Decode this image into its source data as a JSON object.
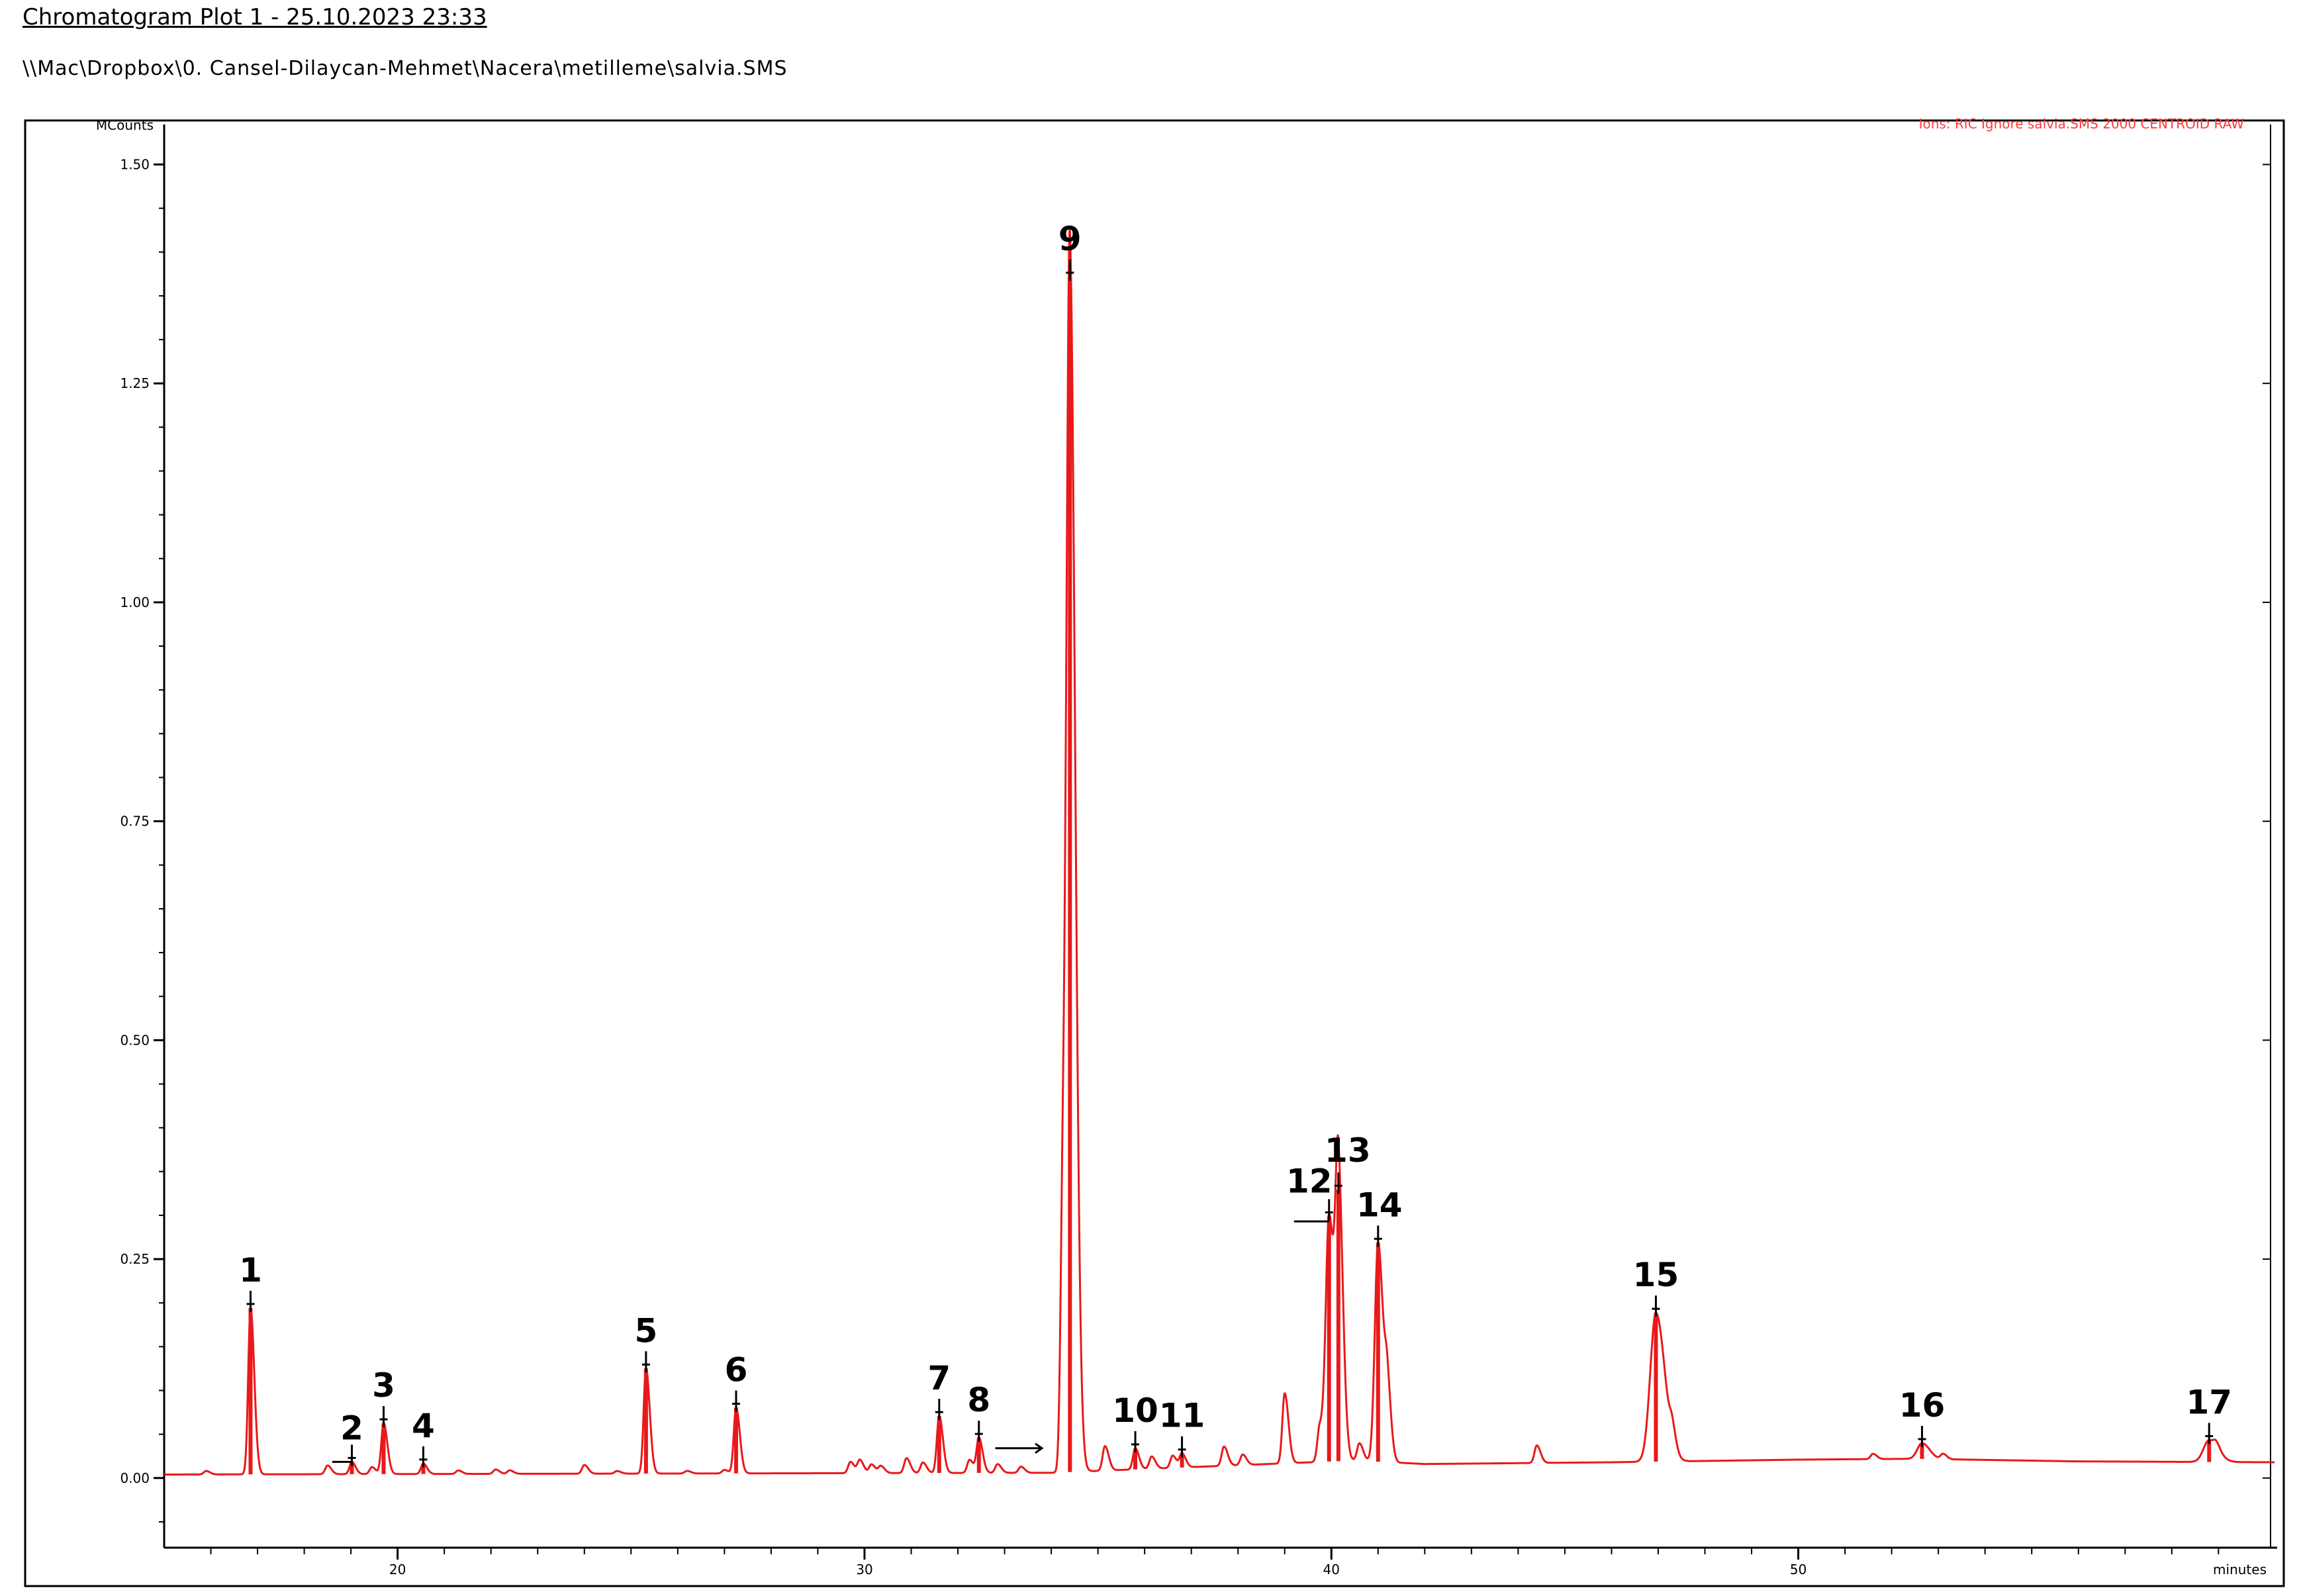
{
  "header": {
    "title": "Chromatogram Plot 1 - 25.10.2023 23:33",
    "file_path": "\\\\Mac\\Dropbox\\0. Cansel-Dilaycan-Mehmet\\Nacera\\metilleme\\salvia.SMS"
  },
  "colors": {
    "trace": "#e8191b",
    "axis": "#000000",
    "frame": "#000000",
    "legend_text": "#ff3b3b",
    "label": "#000000"
  },
  "chart_data": {
    "type": "line",
    "title": "",
    "xlabel": "minutes",
    "ylabel": "MCounts",
    "legend": "Ions: RIC Ignore salvia.SMS 2000 CENTROID RAW",
    "xlim": [
      15,
      60.2
    ],
    "ylim": [
      -0.075,
      1.52
    ],
    "xticks": [
      20,
      30,
      40,
      50
    ],
    "xtick_labels": [
      "20",
      "30",
      "40",
      "50"
    ],
    "yticks": [
      0.0,
      0.25,
      0.5,
      0.75,
      1.0,
      1.25,
      1.5
    ],
    "ytick_labels": [
      "0.00",
      "0.25",
      "0.50",
      "0.75",
      "1.00",
      "1.25",
      "1.50"
    ],
    "baseline": [
      [
        15.0,
        0.004
      ],
      [
        34.0,
        0.006
      ],
      [
        40.5,
        0.02
      ],
      [
        42.0,
        0.016
      ],
      [
        46.0,
        0.018
      ],
      [
        50.0,
        0.021
      ],
      [
        52.5,
        0.022
      ],
      [
        56.0,
        0.019
      ],
      [
        60.2,
        0.018
      ]
    ],
    "peaks": [
      {
        "label": "1",
        "rt": 16.85,
        "height": 0.19,
        "width": 0.05
      },
      {
        "label": "2",
        "rt": 19.02,
        "height": 0.014,
        "width": 0.05
      },
      {
        "label": "3",
        "rt": 19.7,
        "height": 0.058,
        "width": 0.05
      },
      {
        "label": "4",
        "rt": 20.55,
        "height": 0.012,
        "width": 0.05
      },
      {
        "label": "5",
        "rt": 25.32,
        "height": 0.12,
        "width": 0.05
      },
      {
        "label": "6",
        "rt": 27.25,
        "height": 0.075,
        "width": 0.05
      },
      {
        "label": "7",
        "rt": 31.6,
        "height": 0.065,
        "width": 0.05
      },
      {
        "label": "8",
        "rt": 32.45,
        "height": 0.04,
        "width": 0.05
      },
      {
        "label": "9",
        "rt": 34.4,
        "height": 1.365,
        "width": 0.07
      },
      {
        "label": "10",
        "rt": 35.8,
        "height": 0.024,
        "width": 0.05
      },
      {
        "label": "11",
        "rt": 36.8,
        "height": 0.016,
        "width": 0.05
      },
      {
        "label": "12",
        "rt": 39.95,
        "height": 0.28,
        "width": 0.07
      },
      {
        "label": "13",
        "rt": 40.15,
        "height": 0.31,
        "width": 0.06
      },
      {
        "label": "14",
        "rt": 41.0,
        "height": 0.25,
        "width": 0.07
      },
      {
        "label": "15",
        "rt": 46.95,
        "height": 0.17,
        "width": 0.12
      },
      {
        "label": "16",
        "rt": 52.65,
        "height": 0.018,
        "width": 0.1
      },
      {
        "label": "17",
        "rt": 58.8,
        "height": 0.025,
        "width": 0.12
      }
    ],
    "minor_peaks": [
      {
        "rt": 15.9,
        "height": 0.004
      },
      {
        "rt": 18.5,
        "height": 0.01
      },
      {
        "rt": 19.45,
        "height": 0.008
      },
      {
        "rt": 21.3,
        "height": 0.004
      },
      {
        "rt": 22.1,
        "height": 0.005
      },
      {
        "rt": 22.4,
        "height": 0.004
      },
      {
        "rt": 24.0,
        "height": 0.01
      },
      {
        "rt": 24.7,
        "height": 0.003
      },
      {
        "rt": 26.2,
        "height": 0.003
      },
      {
        "rt": 27.0,
        "height": 0.004
      },
      {
        "rt": 29.7,
        "height": 0.013
      },
      {
        "rt": 29.9,
        "height": 0.015
      },
      {
        "rt": 30.15,
        "height": 0.01
      },
      {
        "rt": 30.35,
        "height": 0.008
      },
      {
        "rt": 30.9,
        "height": 0.017
      },
      {
        "rt": 31.25,
        "height": 0.012
      },
      {
        "rt": 32.25,
        "height": 0.015
      },
      {
        "rt": 32.85,
        "height": 0.01
      },
      {
        "rt": 33.35,
        "height": 0.007
      },
      {
        "rt": 34.25,
        "height": 0.3
      },
      {
        "rt": 35.15,
        "height": 0.028
      },
      {
        "rt": 36.15,
        "height": 0.014
      },
      {
        "rt": 36.6,
        "height": 0.014
      },
      {
        "rt": 37.7,
        "height": 0.022
      },
      {
        "rt": 38.1,
        "height": 0.012
      },
      {
        "rt": 39.0,
        "height": 0.08
      },
      {
        "rt": 39.75,
        "height": 0.04
      },
      {
        "rt": 40.6,
        "height": 0.02
      },
      {
        "rt": 41.2,
        "height": 0.07
      },
      {
        "rt": 44.4,
        "height": 0.02
      },
      {
        "rt": 47.3,
        "height": 0.02
      },
      {
        "rt": 51.6,
        "height": 0.006
      },
      {
        "rt": 53.1,
        "height": 0.006
      },
      {
        "rt": 58.95,
        "height": 0.006
      }
    ],
    "grid": false
  }
}
